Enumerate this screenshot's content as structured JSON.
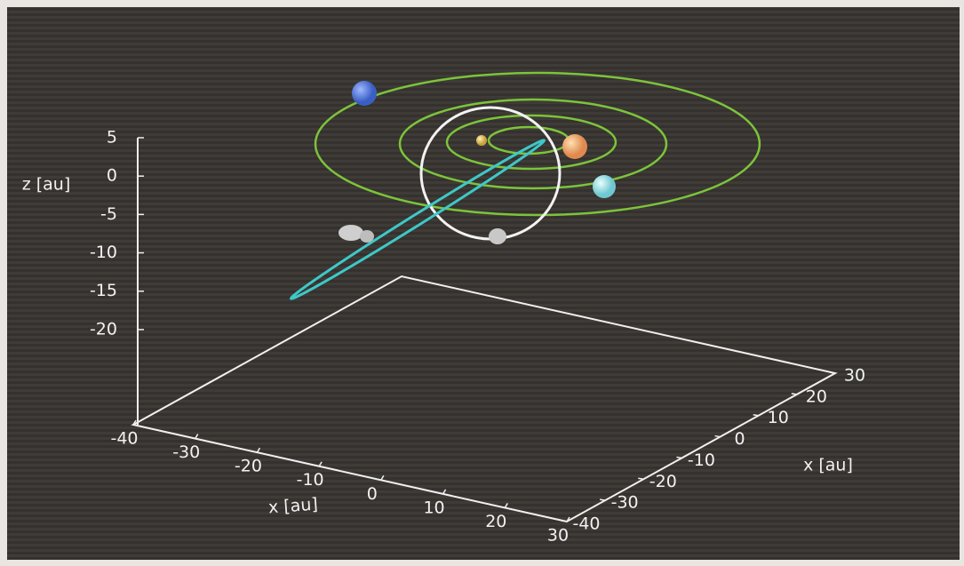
{
  "chart_data": {
    "type": "3d-axes",
    "xlabel": "x [au]",
    "ylabel": "x [au]",
    "zlabel": "z [au]",
    "xlim": [
      -40,
      30
    ],
    "ylim": [
      -40,
      30
    ],
    "zlim": [
      -32.4,
      5
    ],
    "xticks": [
      -40,
      -30,
      -20,
      -10,
      0,
      10,
      20,
      30
    ],
    "yticks": [
      -40,
      -30,
      -20,
      -10,
      0,
      10,
      20,
      30
    ],
    "zticks": [
      5,
      0,
      -5,
      -10,
      -15,
      -20
    ]
  }
}
